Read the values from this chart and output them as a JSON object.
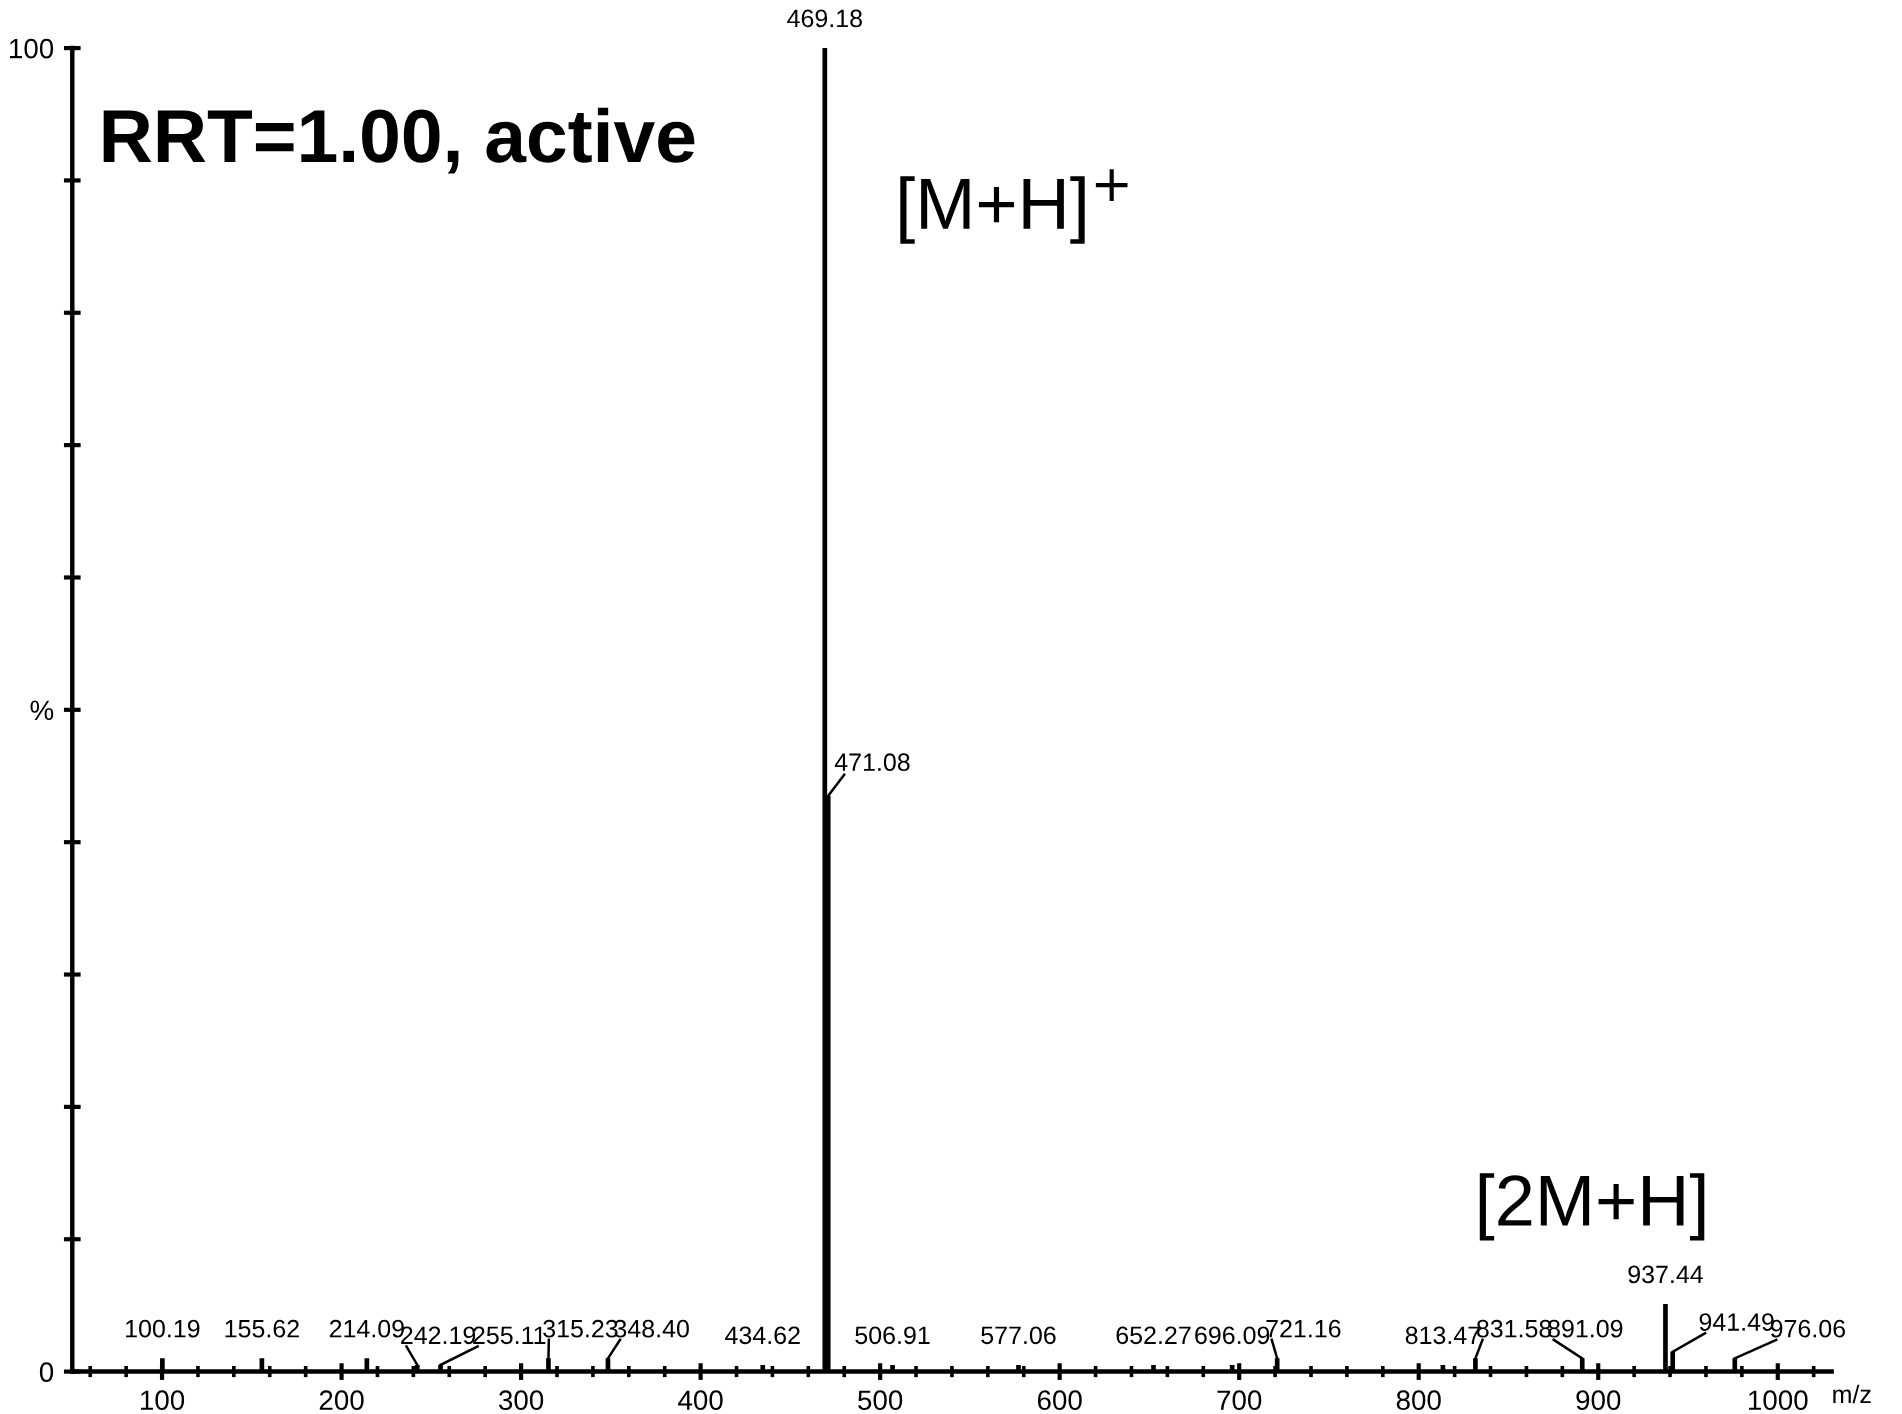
{
  "chart_data": {
    "type": "bar",
    "annotations": [
      "RRT=1.00, active",
      {
        "text": "[M+H]$^{+}$",
        "x": 469.18,
        "y": 100
      },
      {
        "text": "[2M+H]",
        "x": 937.44,
        "y": 5.1
      },
      {
        "text": "100.19",
        "x": 100.19,
        "y": 1
      },
      {
        "text": "155.62",
        "x": 155.62,
        "y": 1
      },
      {
        "text": "214.09",
        "x": 214.09,
        "y": 1
      },
      {
        "text": "242.19",
        "x": 242.19,
        "y": 0.5
      },
      {
        "text": "255.11",
        "x": 255.11,
        "y": 0.5
      },
      {
        "text": "315.23",
        "x": 315.23,
        "y": 1
      },
      {
        "text": "348.40",
        "x": 348.4,
        "y": 1
      },
      {
        "text": "434.62",
        "x": 434.62,
        "y": 0.5
      },
      {
        "text": "469.18",
        "x": 469.18,
        "y": 100
      },
      {
        "text": "471.08",
        "x": 471.08,
        "y": 43.5
      },
      {
        "text": "506.91",
        "x": 506.91,
        "y": 0.5
      },
      {
        "text": "577.06",
        "x": 577.06,
        "y": 0.5
      },
      {
        "text": "652.27",
        "x": 652.27,
        "y": 0.5
      },
      {
        "text": "696.09",
        "x": 696.09,
        "y": 0.5
      },
      {
        "text": "721.16",
        "x": 721.16,
        "y": 1
      },
      {
        "text": "813.47",
        "x": 813.47,
        "y": 0.5
      },
      {
        "text": "831.58",
        "x": 831.58,
        "y": 1
      },
      {
        "text": "891.09",
        "x": 891.09,
        "y": 1
      },
      {
        "text": "937.44",
        "x": 937.44,
        "y": 5.1
      },
      {
        "text": "941.49",
        "x": 941.49,
        "y": 1.5
      },
      {
        "text": "976.06",
        "x": 976.06,
        "y": 1
      }
    ],
    "xlabel": "m/z",
    "x": [
      100.19,
      155.62,
      214.09,
      242.19,
      255.11,
      315.23,
      348.4,
      434.62,
      469.18,
      471.08,
      506.91,
      577.06,
      652.27,
      696.09,
      721.16,
      813.47,
      831.58,
      891.09,
      937.44,
      941.49,
      976.06
    ],
    "values": [
      1,
      1,
      1,
      0.5,
      0.5,
      1,
      1,
      0.5,
      100,
      43.5,
      0.5,
      0.5,
      0.5,
      0.5,
      1,
      0.5,
      1,
      1,
      5.1,
      1.5,
      1
    ],
    "color": "#000000",
    "xlim": [
      50,
      1030
    ],
    "xticks": [
      100,
      200,
      300,
      400,
      500,
      600,
      700,
      800,
      900,
      1000
    ],
    "ylim": [
      0,
      100
    ],
    "yticks": [
      0,
      {
        "value": 10,
        "label": null
      },
      {
        "value": 20,
        "label": null
      },
      {
        "value": 30,
        "label": null
      },
      {
        "value": 40,
        "label": null
      },
      {
        "value": 50,
        "label": "%"
      },
      {
        "value": 60,
        "label": null
      },
      {
        "value": 70,
        "label": null
      },
      {
        "value": 80,
        "label": null
      },
      {
        "value": 90,
        "label": null
      },
      100
    ],
    "grid": false
  }
}
